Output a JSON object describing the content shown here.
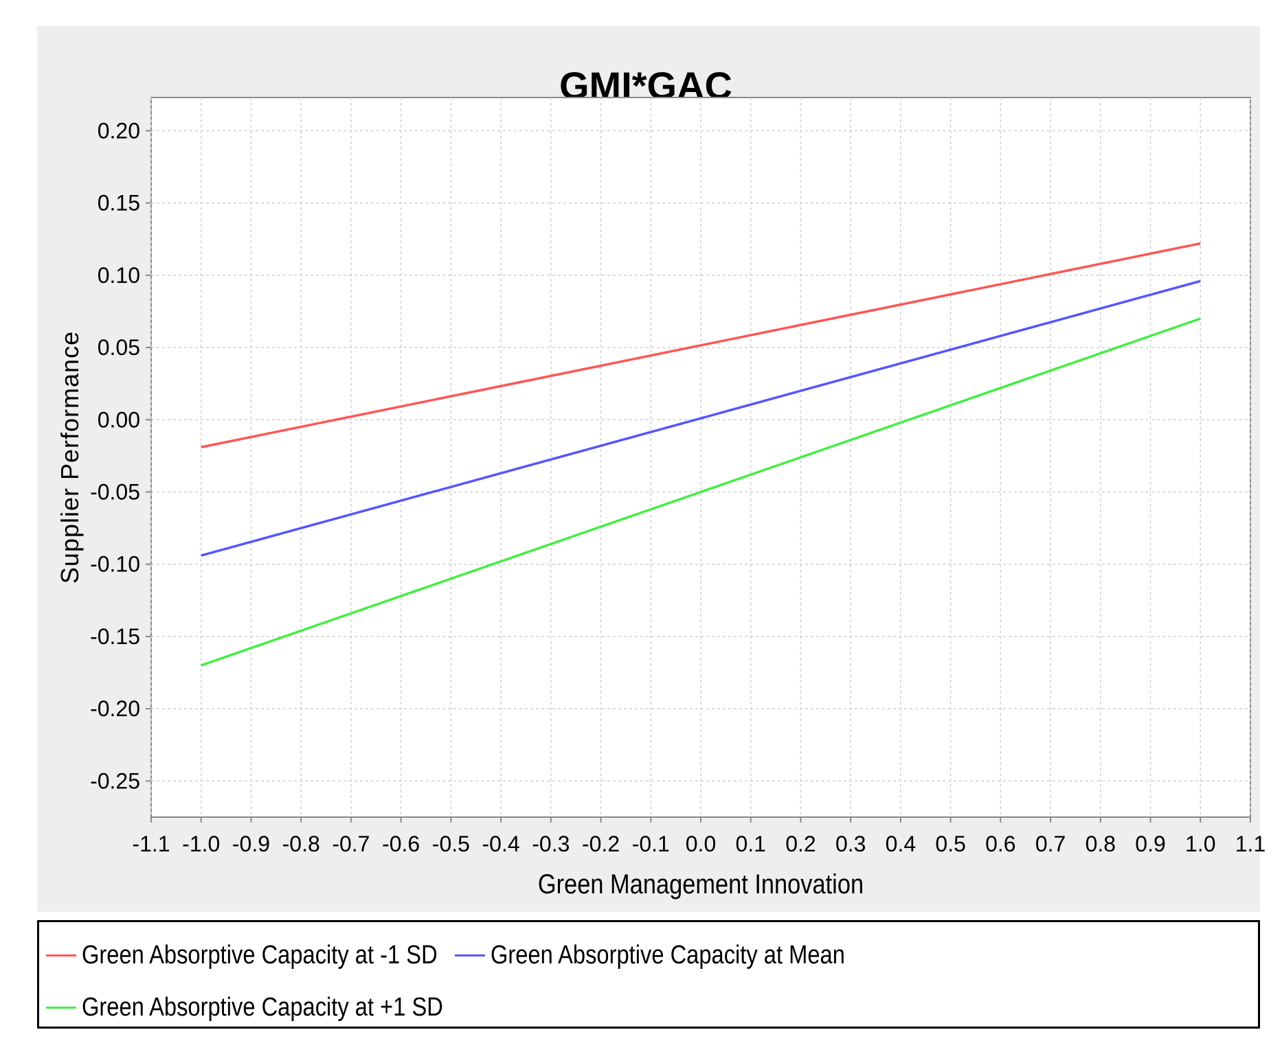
{
  "chart_data": {
    "type": "line",
    "title": "GMI*GAC",
    "xlabel": "Green Management Innovation",
    "ylabel": "Supplier Performance",
    "xlim": [
      -1.1,
      1.1
    ],
    "ylim": [
      -0.275,
      0.223
    ],
    "x_ticks": [
      "-1.1",
      "-1.0",
      "-0.9",
      "-0.8",
      "-0.7",
      "-0.6",
      "-0.5",
      "-0.4",
      "-0.3",
      "-0.2",
      "-0.1",
      "0.0",
      "0.1",
      "0.2",
      "0.3",
      "0.4",
      "0.5",
      "0.6",
      "0.7",
      "0.8",
      "0.9",
      "1.0",
      "1.1"
    ],
    "y_ticks": [
      "0.20",
      "0.15",
      "0.10",
      "0.05",
      "0.00",
      "-0.05",
      "-0.10",
      "-0.15",
      "-0.20",
      "-0.25"
    ],
    "grid": true,
    "legend_position": "bottom",
    "series": [
      {
        "name": "Green Absorptive Capacity at -1 SD",
        "color": "#ff5555",
        "x": [
          -1.0,
          1.0
        ],
        "y": [
          -0.019,
          0.122
        ]
      },
      {
        "name": "Green Absorptive Capacity at Mean",
        "color": "#5555ff",
        "x": [
          -1.0,
          1.0
        ],
        "y": [
          -0.094,
          0.096
        ]
      },
      {
        "name": "Green Absorptive Capacity at +1 SD",
        "color": "#44ee44",
        "x": [
          -1.0,
          1.0
        ],
        "y": [
          -0.17,
          0.07
        ]
      }
    ]
  }
}
